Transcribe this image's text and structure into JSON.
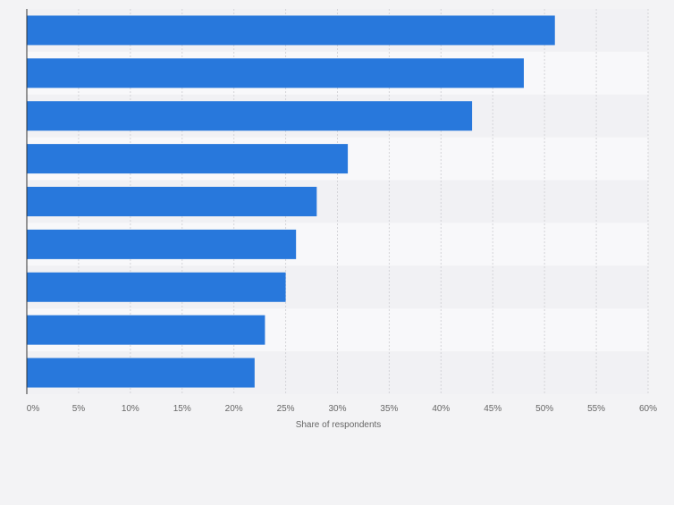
{
  "chart_data": {
    "type": "bar",
    "orientation": "horizontal",
    "categories": [
      "",
      "",
      "",
      "",
      "",
      "",
      "",
      "",
      ""
    ],
    "values": [
      51,
      48,
      43,
      31,
      28,
      26,
      25,
      23,
      22
    ],
    "xlabel": "Share of respondents",
    "ylabel": "",
    "xlim": [
      0,
      60
    ],
    "x_ticks": [
      "0%",
      "5%",
      "10%",
      "15%",
      "20%",
      "25%",
      "30%",
      "35%",
      "40%",
      "45%",
      "50%",
      "55%",
      "60%"
    ],
    "grid": "vertical",
    "legend": "none"
  },
  "colors": {
    "bar": "#2878dc",
    "background": "#f3f3f5",
    "band_light": "#f8f8fa",
    "band_dark": "#f1f1f4",
    "grid": "#d4d4d8",
    "axis": "#333333",
    "tick_text": "#666666"
  }
}
